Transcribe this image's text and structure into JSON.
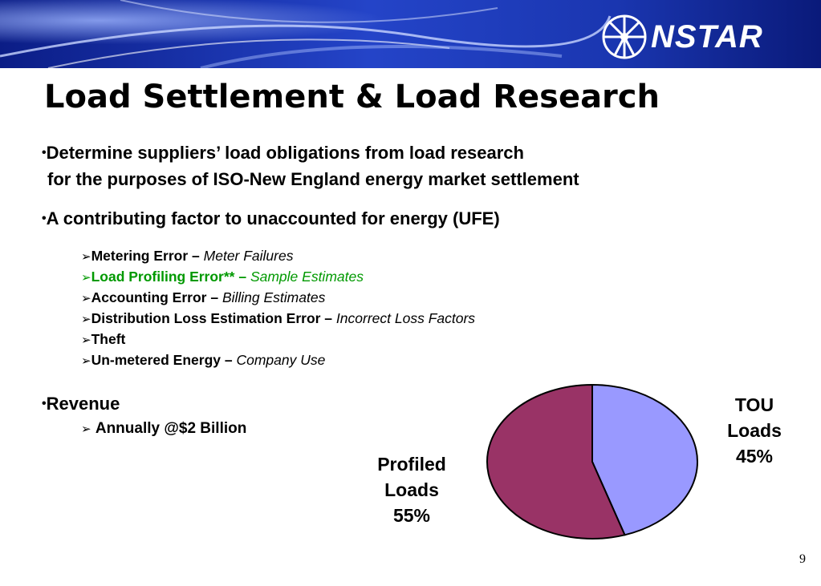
{
  "header": {
    "brand": "NSTAR",
    "logo_icon": "starburst-logo-icon",
    "colors": {
      "banner_dark": "#0a1a7a",
      "banner_mid": "#1f3fbf",
      "banner_light": "#9fb6ff"
    }
  },
  "slide": {
    "title": "Load Settlement & Load Research",
    "bullets": [
      {
        "marker": "•",
        "line1": "Determine suppliers’ load obligations from load research",
        "line2": "for the purposes of ISO-New England energy market settlement"
      },
      {
        "marker": "•",
        "line1": "A contributing factor to unaccounted for energy (UFE)"
      },
      {
        "marker": "•",
        "line1": "Revenue"
      }
    ],
    "ufe_factors": [
      {
        "label": "Metering Error –",
        "detail": "Meter Failures",
        "highlight": false
      },
      {
        "label": "Load Profiling Error** –",
        "detail": "Sample Estimates",
        "highlight": true
      },
      {
        "label": "Accounting Error –",
        "detail": "Billing Estimates",
        "highlight": false
      },
      {
        "label": "Distribution Loss Estimation Error –",
        "detail": "Incorrect Loss Factors",
        "highlight": false
      },
      {
        "label": "Theft",
        "detail": "",
        "highlight": false
      },
      {
        "label": "Un-metered Energy –",
        "detail": "Company Use",
        "highlight": false
      }
    ],
    "revenue_sub": "Annually  @$2 Billion",
    "arrow": "➢",
    "highlight_color": "#009900",
    "page_number": "9"
  },
  "chart_data": {
    "type": "pie",
    "title": "",
    "slices": [
      {
        "label_lines": [
          "TOU",
          "Loads",
          "45%"
        ],
        "value": 45,
        "color": "#9999ff"
      },
      {
        "label_lines": [
          "Profiled",
          "Loads",
          "55%"
        ],
        "value": 55,
        "color": "#993366"
      }
    ],
    "start": "12 o'clock",
    "direction": "clockwise",
    "outline_color": "#000000"
  }
}
